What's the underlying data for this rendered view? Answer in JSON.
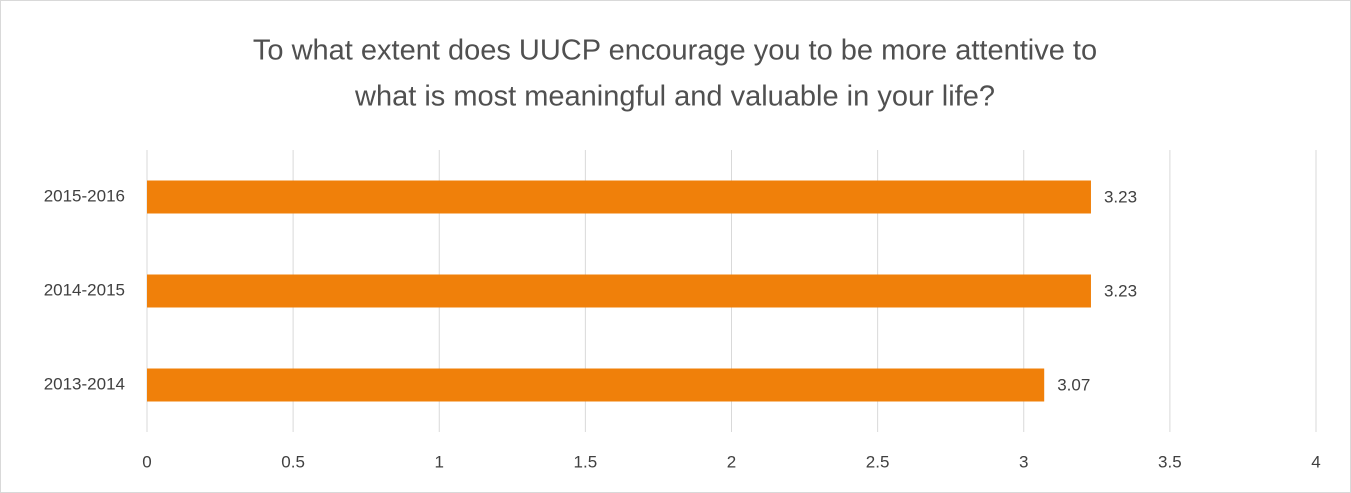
{
  "chart_data": {
    "type": "bar",
    "orientation": "horizontal",
    "title": [
      "To what extent does UUCP encourage you to be more attentive to",
      "what is most meaningful and valuable in your life?"
    ],
    "categories": [
      "2013-2014",
      "2014-2015",
      "2015-2016"
    ],
    "values": [
      3.07,
      3.23,
      3.23
    ],
    "color": "#f0800a",
    "xlim": [
      0,
      4
    ],
    "xticks": [
      0,
      0.5,
      1,
      1.5,
      2,
      2.5,
      3,
      3.5,
      4
    ],
    "grid": true,
    "data_labels": true
  }
}
